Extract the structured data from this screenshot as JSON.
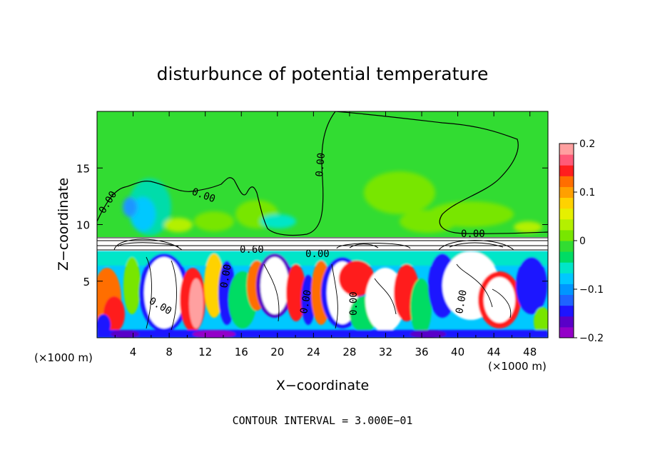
{
  "chart_data": {
    "type": "heatmap",
    "title": "disturbunce of potential temperature",
    "xlabel": "X−coordinate",
    "ylabel": "Z−coordinate",
    "x_unit_left": "(×1000 m)",
    "x_unit_right": "(×1000 m)",
    "xlim": [
      0,
      50
    ],
    "ylim": [
      0,
      20
    ],
    "x_ticks": [
      4,
      8,
      12,
      16,
      20,
      24,
      28,
      32,
      36,
      40,
      44,
      48
    ],
    "y_ticks": [
      5,
      10,
      15
    ],
    "colorbar": {
      "range": [
        -0.2,
        0.2
      ],
      "tick_labels": [
        "0.2",
        "0.1",
        "0",
        "−0.1",
        "−0.2"
      ],
      "tick_values": [
        0.2,
        0.1,
        0,
        -0.1,
        -0.2
      ],
      "colors": [
        "#9400c8",
        "#5a00c8",
        "#1e14ff",
        "#1e64ff",
        "#0096ff",
        "#00c8ff",
        "#00e6c8",
        "#00dc64",
        "#32dc32",
        "#78e600",
        "#b4f000",
        "#e6f000",
        "#ffd200",
        "#ffa000",
        "#ff6e00",
        "#ff1e1e",
        "#ff5a78",
        "#ffa0a0"
      ]
    },
    "contour_labels": [
      "0.00",
      "0.00",
      "0.00",
      "0.00",
      "0.60",
      "0.00",
      "0.00",
      "0.00",
      "0.00",
      "0.00",
      "0.00"
    ],
    "annotation": "CONTOUR INTERVAL = 3.000E−01"
  }
}
